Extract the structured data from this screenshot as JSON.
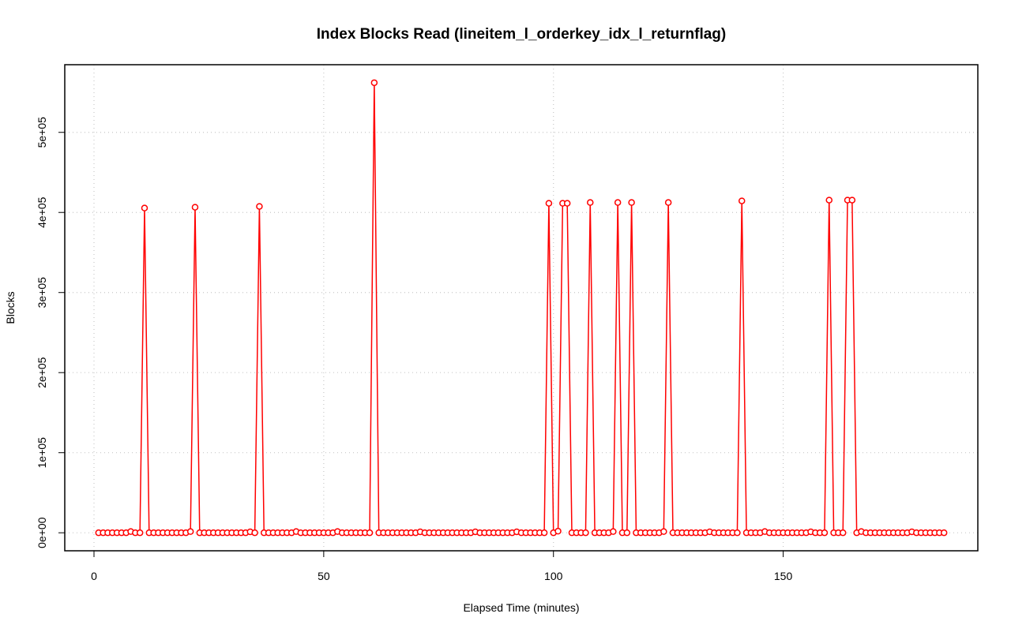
{
  "chart_data": {
    "type": "line",
    "title": "Index Blocks Read (lineitem_l_orderkey_idx_l_returnflag)",
    "x_label": "Elapsed Time (minutes)",
    "y_label": "Blocks",
    "color": "#ff0000",
    "grid": true,
    "x": [
      1,
      2,
      3,
      4,
      5,
      6,
      7,
      8,
      9,
      10,
      11,
      12,
      13,
      14,
      15,
      16,
      17,
      18,
      19,
      20,
      21,
      22,
      23,
      24,
      25,
      26,
      27,
      28,
      29,
      30,
      31,
      32,
      33,
      34,
      35,
      36,
      37,
      38,
      39,
      40,
      41,
      42,
      43,
      44,
      45,
      46,
      47,
      48,
      49,
      50,
      51,
      52,
      53,
      54,
      55,
      56,
      57,
      58,
      59,
      60,
      61,
      62,
      63,
      64,
      65,
      66,
      67,
      68,
      69,
      70,
      71,
      72,
      73,
      74,
      75,
      76,
      77,
      78,
      79,
      80,
      81,
      82,
      83,
      84,
      85,
      86,
      87,
      88,
      89,
      90,
      91,
      92,
      93,
      94,
      95,
      96,
      97,
      98,
      99,
      100,
      101,
      102,
      103,
      104,
      105,
      106,
      107,
      108,
      109,
      110,
      111,
      112,
      113,
      114,
      115,
      116,
      117,
      118,
      119,
      120,
      121,
      122,
      123,
      124,
      125,
      126,
      127,
      128,
      129,
      130,
      131,
      132,
      133,
      134,
      135,
      136,
      137,
      138,
      139,
      140,
      141,
      142,
      143,
      144,
      145,
      146,
      147,
      148,
      149,
      150,
      151,
      152,
      153,
      154,
      155,
      156,
      157,
      158,
      159,
      160,
      161,
      162,
      163,
      164,
      165,
      166,
      167,
      168,
      169,
      170,
      171,
      172,
      173,
      174,
      175,
      176,
      177,
      178,
      179,
      180,
      181,
      182,
      183,
      184,
      185
    ],
    "values": [
      0,
      0,
      0,
      0,
      0,
      0,
      0,
      1500,
      0,
      0,
      405500,
      0,
      0,
      0,
      0,
      0,
      0,
      0,
      0,
      0,
      1500,
      406500,
      0,
      0,
      0,
      0,
      0,
      0,
      0,
      0,
      0,
      0,
      0,
      1200,
      0,
      407500,
      0,
      0,
      0,
      0,
      0,
      0,
      0,
      1500,
      0,
      0,
      0,
      0,
      0,
      0,
      0,
      0,
      1500,
      0,
      0,
      0,
      0,
      0,
      0,
      0,
      562000,
      0,
      0,
      0,
      0,
      0,
      0,
      0,
      0,
      0,
      1200,
      0,
      0,
      0,
      0,
      0,
      0,
      0,
      0,
      0,
      0,
      0,
      1200,
      0,
      0,
      0,
      0,
      0,
      0,
      0,
      0,
      1200,
      0,
      0,
      0,
      0,
      0,
      0,
      411400,
      0,
      2000,
      411400,
      411400,
      0,
      0,
      0,
      0,
      412400,
      0,
      0,
      0,
      0,
      1500,
      412400,
      0,
      0,
      412400,
      0,
      0,
      0,
      0,
      0,
      0,
      1500,
      412400,
      0,
      0,
      0,
      0,
      0,
      0,
      0,
      0,
      1200,
      0,
      0,
      0,
      0,
      0,
      0,
      414400,
      0,
      0,
      0,
      0,
      1500,
      0,
      0,
      0,
      0,
      0,
      0,
      0,
      0,
      0,
      1200,
      0,
      0,
      0,
      415400,
      0,
      0,
      0,
      415400,
      415400,
      0,
      1500,
      0,
      0,
      0,
      0,
      0,
      0,
      0,
      0,
      0,
      0,
      1200,
      0,
      0,
      0,
      0,
      0,
      0,
      0
    ],
    "xlim": [
      -6.36,
      192.36
    ],
    "xticks": [
      0,
      50,
      100,
      150
    ],
    "ylim": [
      -22480,
      584480
    ],
    "yticks": [
      {
        "value": 0,
        "label": "0e+00"
      },
      {
        "value": 100000,
        "label": "1e+05"
      },
      {
        "value": 200000,
        "label": "2e+05"
      },
      {
        "value": 300000,
        "label": "3e+05"
      },
      {
        "value": 400000,
        "label": "4e+05"
      },
      {
        "value": 500000,
        "label": "5e+05"
      }
    ]
  }
}
